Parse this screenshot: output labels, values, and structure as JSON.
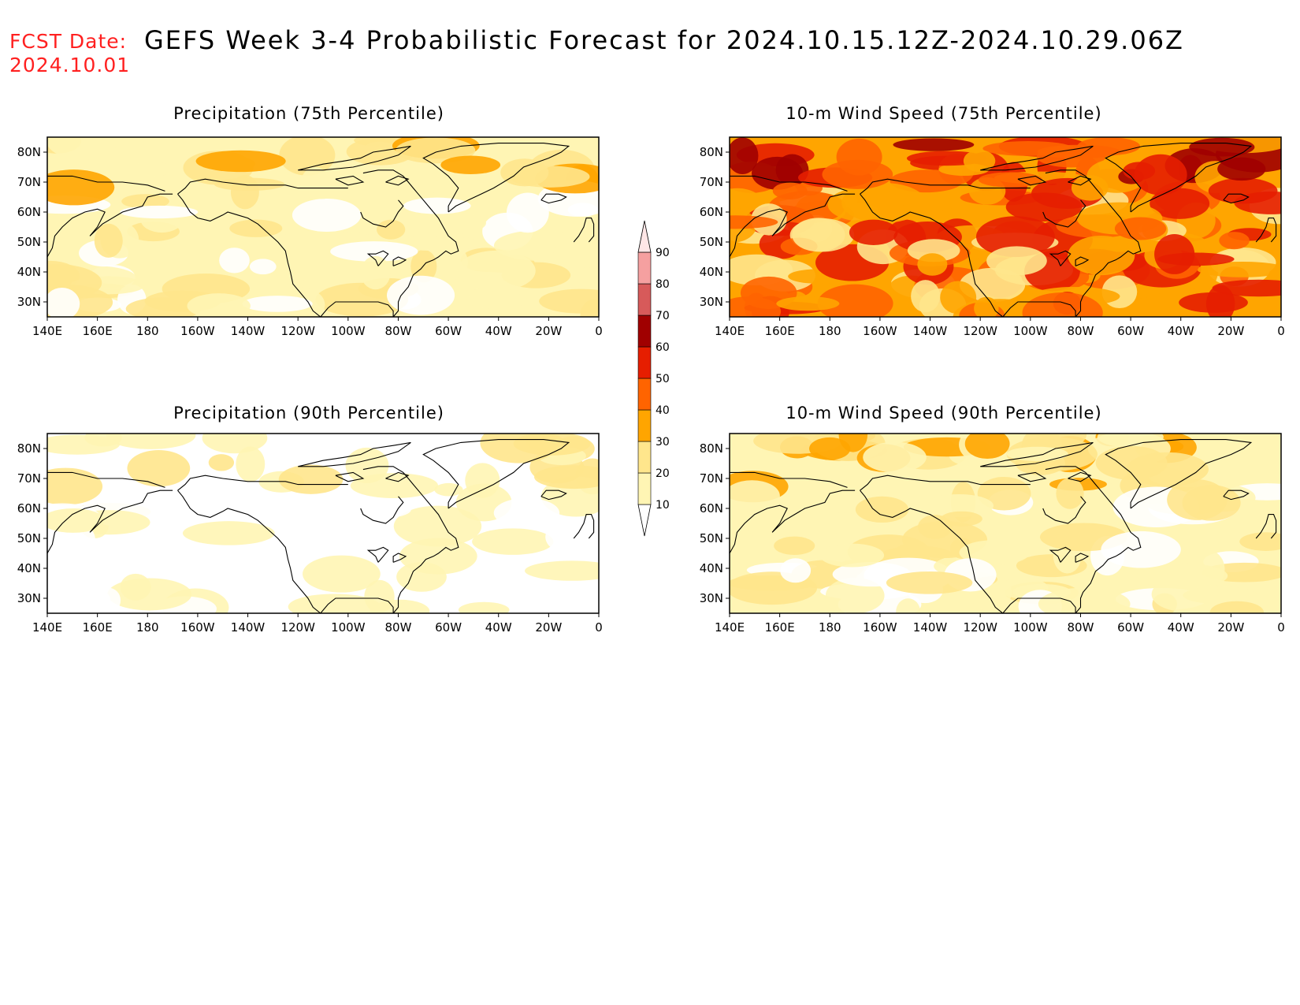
{
  "header": {
    "fcst_label": "FCST Date:",
    "fcst_date": "2024.10.01",
    "title": "GEFS Week 3-4 Probabilistic Forecast for 2024.10.15.12Z-2024.10.29.06Z"
  },
  "panels": [
    {
      "id": "precip75",
      "title": "Precipitation (75th Percentile)",
      "base_level": 1,
      "intensity": "low"
    },
    {
      "id": "wind75",
      "title": "10-m Wind Speed (75th Percentile)",
      "base_level": 3,
      "intensity": "high"
    },
    {
      "id": "precip90",
      "title": "Precipitation (90th Percentile)",
      "base_level": 0,
      "intensity": "verylow"
    },
    {
      "id": "wind90",
      "title": "10-m Wind Speed (90th Percentile)",
      "base_level": 1,
      "intensity": "mid"
    }
  ],
  "axes": {
    "lon_labels": [
      "140E",
      "160E",
      "180",
      "160W",
      "140W",
      "120W",
      "100W",
      "80W",
      "60W",
      "40W",
      "20W",
      "0"
    ],
    "lat_labels": [
      "80N",
      "70N",
      "60N",
      "50N",
      "40N",
      "30N"
    ]
  },
  "colorbar": {
    "levels": [
      "10",
      "20",
      "30",
      "40",
      "50",
      "60",
      "70",
      "80",
      "90"
    ],
    "colors": [
      "#ffffff",
      "#fff5b4",
      "#ffe68c",
      "#ffa500",
      "#ff6400",
      "#e61e00",
      "#a00000",
      "#d75a5a",
      "#f5a0a0",
      "#ffe6e6"
    ]
  }
}
